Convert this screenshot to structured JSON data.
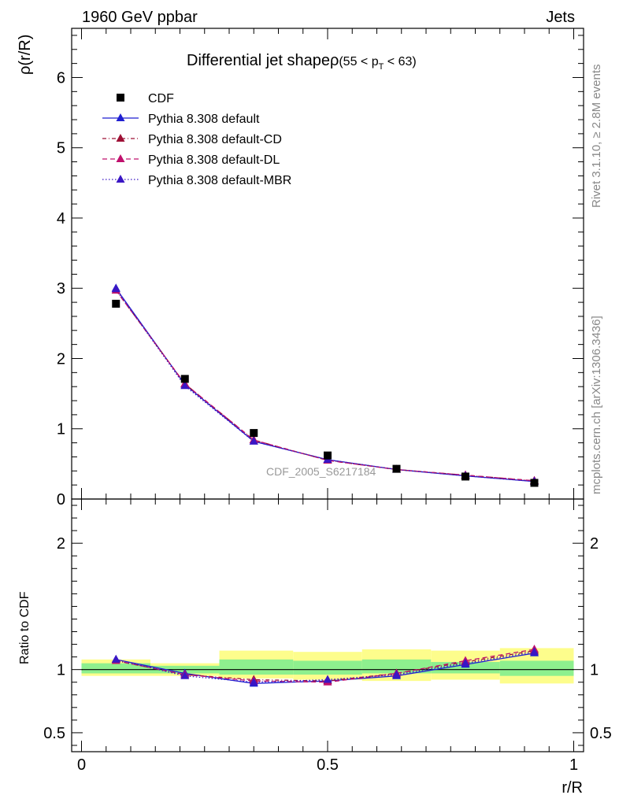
{
  "header": {
    "energy_label": "1960 GeV ppbar",
    "category_label": "Jets"
  },
  "side_labels": {
    "rivet": "Rivet 3.1.10, ≥ 2.8M events",
    "mcplots": "mcplots.cern.ch [arXiv:1306.3436]"
  },
  "chart_data": [
    {
      "type": "line",
      "panel": "main",
      "title": "Differential jet shapeρ",
      "title_sub": "(55 < p",
      "title_sub_index": "T",
      "title_sub_end": " < 63)",
      "ylabel": "ρ(r/R)",
      "xlabel": "",
      "watermark": "CDF_2005_S6217184",
      "xlim": [
        -0.02,
        1.02
      ],
      "ylim": [
        0,
        6.7
      ],
      "yticks": [
        0,
        1,
        2,
        3,
        4,
        5,
        6
      ],
      "ytick_labels": [
        "0",
        "1",
        "2",
        "3",
        "4",
        "5",
        "6"
      ],
      "legend_position": "top-left",
      "x": [
        0.07,
        0.21,
        0.35,
        0.5,
        0.64,
        0.78,
        0.92
      ],
      "data": {
        "name": "CDF",
        "color": "#000000",
        "values": [
          2.78,
          1.71,
          0.94,
          0.62,
          0.43,
          0.32,
          0.23
        ]
      },
      "series": [
        {
          "name": "Pythia 8.308 default",
          "color": "#1f1fd1",
          "dash": "",
          "values": [
            3.0,
            1.63,
            0.82,
            0.56,
            0.42,
            0.33,
            0.25
          ]
        },
        {
          "name": "Pythia 8.308 default-CD",
          "color": "#9e1035",
          "dash": "5,3,1,3",
          "values": [
            2.97,
            1.64,
            0.84,
            0.55,
            0.42,
            0.34,
            0.26
          ]
        },
        {
          "name": "Pythia 8.308 default-DL",
          "color": "#c0106d",
          "dash": "6,4",
          "values": [
            2.97,
            1.64,
            0.84,
            0.55,
            0.42,
            0.34,
            0.26
          ]
        },
        {
          "name": "Pythia 8.308 default-MBR",
          "color": "#3a16c4",
          "dash": "1.5,2.5",
          "values": [
            2.99,
            1.61,
            0.82,
            0.56,
            0.42,
            0.33,
            0.25
          ]
        }
      ]
    },
    {
      "type": "line",
      "panel": "ratio",
      "title": "",
      "ylabel": "Ratio to CDF",
      "xlabel": "r/R",
      "xlim": [
        -0.02,
        1.02
      ],
      "ylim": [
        0.35,
        2.35
      ],
      "yticks": [
        0.5,
        1,
        2
      ],
      "ytick_labels": [
        "0.5",
        "1",
        "2"
      ],
      "xticks": [
        0,
        0.5,
        1
      ],
      "xtick_labels": [
        "0",
        "0.5",
        "1"
      ],
      "x": [
        0.07,
        0.21,
        0.35,
        0.5,
        0.64,
        0.78,
        0.92
      ],
      "bands": {
        "bin_edges": [
          0.0,
          0.14,
          0.28,
          0.43,
          0.57,
          0.71,
          0.85,
          1.0
        ],
        "green_low": [
          0.97,
          0.97,
          0.96,
          0.96,
          0.97,
          0.97,
          0.95
        ],
        "green_high": [
          1.05,
          1.03,
          1.08,
          1.07,
          1.08,
          1.06,
          1.07
        ],
        "yellow_low": [
          0.95,
          0.95,
          0.93,
          0.92,
          0.91,
          0.92,
          0.89
        ],
        "yellow_high": [
          1.08,
          1.05,
          1.15,
          1.14,
          1.16,
          1.15,
          1.17
        ]
      },
      "series": [
        {
          "name": "Pythia 8.308 default",
          "color": "#1f1fd1",
          "dash": "",
          "values": [
            1.08,
            0.97,
            0.89,
            0.91,
            0.95,
            1.04,
            1.13
          ]
        },
        {
          "name": "Pythia 8.308 default-CD",
          "color": "#9e1035",
          "dash": "5,3,1,3",
          "values": [
            1.07,
            0.96,
            0.92,
            0.91,
            0.97,
            1.06,
            1.15
          ]
        },
        {
          "name": "Pythia 8.308 default-DL",
          "color": "#c0106d",
          "dash": "6,4",
          "values": [
            1.07,
            0.96,
            0.91,
            0.9,
            0.97,
            1.07,
            1.16
          ]
        },
        {
          "name": "Pythia 8.308 default-MBR",
          "color": "#3a16c4",
          "dash": "1.5,2.5",
          "values": [
            1.08,
            0.95,
            0.9,
            0.92,
            0.96,
            1.05,
            1.14
          ]
        }
      ]
    }
  ]
}
